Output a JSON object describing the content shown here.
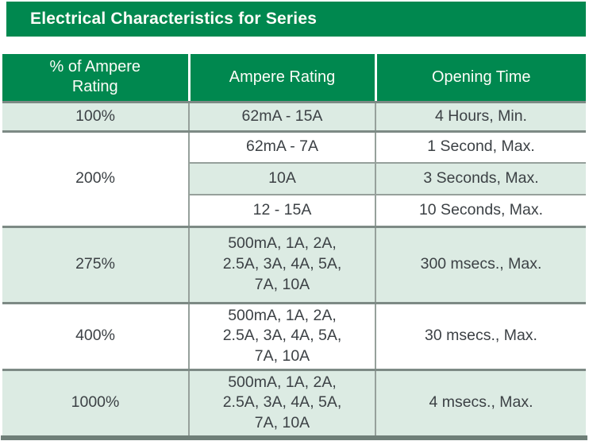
{
  "title": "Electrical Characteristics for Series",
  "colors": {
    "green": "#00884F",
    "row_green": "#DCEBE3",
    "row_white": "#FFFFFF",
    "border": "#96A09B",
    "border_dark": "#7D8A85",
    "bottom_bar": "#6F7F78",
    "text": "#3C4145",
    "header_text": "#FDFDF8"
  },
  "table": {
    "columns": [
      "% of Ampere\nRating",
      "Ampere Rating",
      "Opening Time"
    ],
    "sections": [
      {
        "rating": "100%",
        "shade": "green",
        "rows": [
          {
            "ampere": "62mA - 15A",
            "time": "4 Hours, Min.",
            "shade": "green"
          }
        ]
      },
      {
        "rating": "200%",
        "shade": "white",
        "rows": [
          {
            "ampere": "62mA - 7A",
            "time": "1 Second, Max.",
            "shade": "white"
          },
          {
            "ampere": "10A",
            "time": "3 Seconds, Max.",
            "shade": "green"
          },
          {
            "ampere": "12 - 15A",
            "time": "10 Seconds, Max.",
            "shade": "white"
          }
        ]
      },
      {
        "rating": "275%",
        "shade": "green",
        "rows": [
          {
            "ampere": "500mA, 1A, 2A,\n2.5A, 3A, 4A, 5A,\n7A, 10A",
            "time": "300 msecs., Max.",
            "shade": "green"
          }
        ]
      },
      {
        "rating": "400%",
        "shade": "white",
        "rows": [
          {
            "ampere": "500mA, 1A, 2A,\n2.5A, 3A, 4A, 5A,\n7A, 10A",
            "time": "30 msecs., Max.",
            "shade": "white"
          }
        ]
      },
      {
        "rating": "1000%",
        "shade": "green",
        "rows": [
          {
            "ampere": "500mA, 1A, 2A,\n2.5A, 3A, 4A, 5A,\n7A, 10A",
            "time": "4 msecs., Max.",
            "shade": "green"
          }
        ]
      }
    ]
  }
}
